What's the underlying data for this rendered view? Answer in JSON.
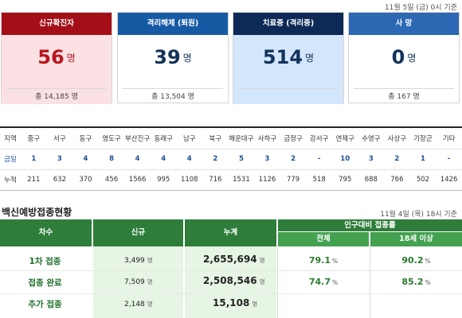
{
  "top_date": "11월 5일 (금) 0시 기준",
  "cards": [
    {
      "title": "신규확진자",
      "value": "56",
      "unit": "명",
      "total": "총 14,185 명"
    },
    {
      "title": "격리해제 (퇴원)",
      "value": "39",
      "unit": "명",
      "total": "총 13,504 명"
    },
    {
      "title": "치료중 (격리중)",
      "value": "514",
      "unit": "명",
      "total": ""
    },
    {
      "title": "사 망",
      "value": "0",
      "unit": "명",
      "total": "총 167 명"
    }
  ],
  "district": {
    "header_label": "지역",
    "today_label": "금일",
    "total_label": "누적",
    "names": [
      "중구",
      "서구",
      "동구",
      "영도구",
      "부산진구",
      "동래구",
      "남구",
      "북구",
      "해운대구",
      "사하구",
      "금정구",
      "강서구",
      "연제구",
      "수영구",
      "사상구",
      "기장군",
      "기타"
    ],
    "today": [
      "1",
      "3",
      "4",
      "8",
      "4",
      "4",
      "4",
      "2",
      "5",
      "3",
      "2",
      "-",
      "10",
      "3",
      "2",
      "1",
      "-"
    ],
    "total": [
      "211",
      "632",
      "370",
      "456",
      "1566",
      "995",
      "1108",
      "716",
      "1531",
      "1126",
      "779",
      "518",
      "795",
      "688",
      "766",
      "502",
      "1426"
    ]
  },
  "vaccine": {
    "title": "백신예방접종현황",
    "date": "11월 4일 (목) 18시 기준",
    "headers": {
      "round": "차수",
      "new": "신규",
      "total": "누계",
      "pop_rate": "인구대비 접종률",
      "all": "전체",
      "over18": "18세 이상"
    },
    "rows": [
      {
        "label": "1차 접종",
        "new": "3,499",
        "total": "2,655,694",
        "rate_all": "79.1",
        "rate_18": "90.2"
      },
      {
        "label": "접종 완료",
        "new": "7,509",
        "total": "2,508,546",
        "rate_all": "74.7",
        "rate_18": "85.2"
      },
      {
        "label": "추가 접종",
        "new": "2,148",
        "total": "15,108",
        "rate_all": "",
        "rate_18": ""
      }
    ],
    "unit_person": "명",
    "unit_percent": "%"
  }
}
